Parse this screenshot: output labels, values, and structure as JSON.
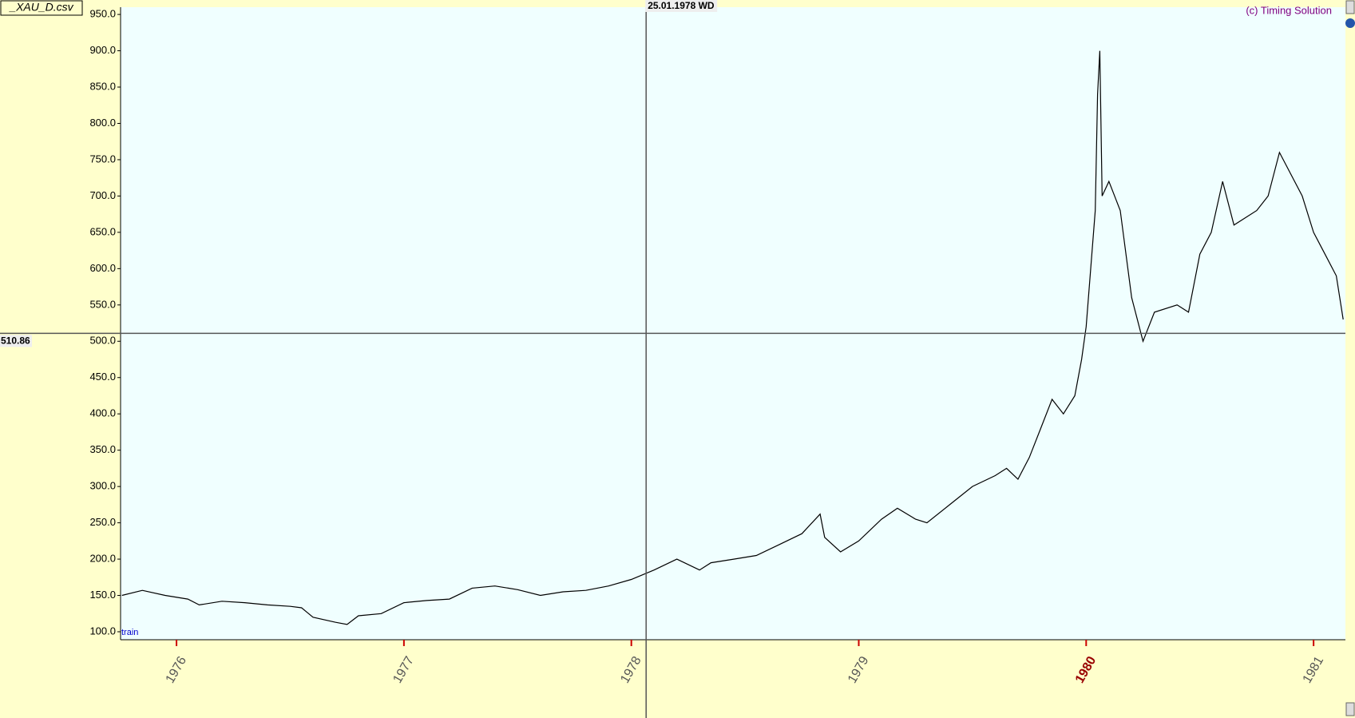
{
  "chart_data": {
    "type": "line",
    "file_label": "_XAU_D.csv",
    "copyright": "(c) Timing Solution",
    "train_label": "train",
    "x": [
      1975.76,
      1975.85,
      1975.95,
      1976.05,
      1976.1,
      1976.2,
      1976.3,
      1976.4,
      1976.5,
      1976.55,
      1976.6,
      1976.7,
      1976.75,
      1976.8,
      1976.9,
      1977.0,
      1977.1,
      1977.2,
      1977.3,
      1977.4,
      1977.5,
      1977.6,
      1977.7,
      1977.8,
      1977.9,
      1978.0,
      1978.1,
      1978.2,
      1978.3,
      1978.35,
      1978.45,
      1978.55,
      1978.65,
      1978.75,
      1978.83,
      1978.85,
      1978.92,
      1979.0,
      1979.1,
      1979.17,
      1979.25,
      1979.3,
      1979.4,
      1979.5,
      1979.6,
      1979.65,
      1979.7,
      1979.75,
      1979.8,
      1979.85,
      1979.9,
      1979.95,
      1979.98,
      1980.0,
      1980.02,
      1980.04,
      1980.05,
      1980.06,
      1980.07,
      1980.1,
      1980.15,
      1980.2,
      1980.25,
      1980.3,
      1980.4,
      1980.45,
      1980.5,
      1980.55,
      1980.6,
      1980.65,
      1980.75,
      1980.8,
      1980.85,
      1980.95,
      1981.0,
      1981.05,
      1981.1,
      1981.13
    ],
    "series": [
      {
        "color": "#000000",
        "values": [
          150,
          157,
          150,
          145,
          137,
          142,
          140,
          137,
          135,
          133,
          120,
          113,
          110,
          122,
          125,
          140,
          143,
          145,
          160,
          163,
          158,
          150,
          155,
          157,
          163,
          172,
          185,
          200,
          185,
          195,
          200,
          205,
          220,
          235,
          262,
          230,
          210,
          225,
          255,
          270,
          255,
          250,
          275,
          300,
          315,
          325,
          310,
          340,
          380,
          420,
          400,
          425,
          475,
          520,
          600,
          680,
          840,
          900,
          700,
          720,
          680,
          560,
          500,
          540,
          550,
          540,
          620,
          650,
          720,
          660,
          680,
          700,
          760,
          700,
          650,
          620,
          590,
          530
        ]
      }
    ],
    "xlim": [
      1975.754,
      1981.14
    ],
    "ylim": [
      89,
      960
    ],
    "xticks": [
      1976,
      1977,
      1978,
      1979,
      1980,
      1981
    ],
    "highlight_xtick": 1980,
    "yticks": [
      {
        "value": 100,
        "label": "100.0"
      },
      {
        "value": 150,
        "label": "150.0"
      },
      {
        "value": 200,
        "label": "200.0"
      },
      {
        "value": 250,
        "label": "250.0"
      },
      {
        "value": 300,
        "label": "300.0"
      },
      {
        "value": 350,
        "label": "350.0"
      },
      {
        "value": 400,
        "label": "400.0"
      },
      {
        "value": 450,
        "label": "450.0"
      },
      {
        "value": 500,
        "label": "500.0"
      },
      {
        "value": 550,
        "label": "550.0"
      },
      {
        "value": 600,
        "label": "600.0"
      },
      {
        "value": 650,
        "label": "650.0"
      },
      {
        "value": 700,
        "label": "700.0"
      },
      {
        "value": 750,
        "label": "750.0"
      },
      {
        "value": 800,
        "label": "800.0"
      },
      {
        "value": 850,
        "label": "850.0"
      },
      {
        "value": 900,
        "label": "900.0"
      },
      {
        "value": 950,
        "label": "950.0"
      }
    ],
    "crosshair": {
      "x": 1978.065,
      "x_label": "25.01.1978 WD",
      "y": 510.86
    }
  }
}
